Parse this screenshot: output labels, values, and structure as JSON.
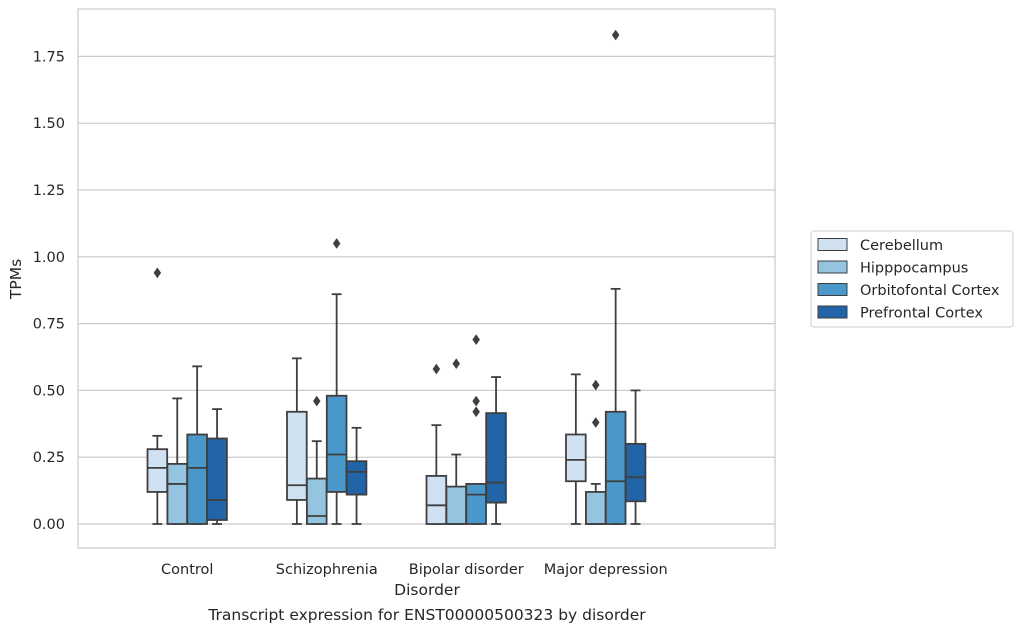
{
  "caption": "Transcript expression for ENST00000500323 by disorder",
  "chart_data": {
    "type": "boxplot",
    "xlabel": "Disorder",
    "ylabel": "TPMs",
    "ylim": [
      -0.09,
      1.92
    ],
    "yticks": [
      "0.00",
      "0.25",
      "0.50",
      "0.75",
      "1.00",
      "1.25",
      "1.50",
      "1.75"
    ],
    "grid": "horizontal",
    "legend_position": "right",
    "categories": [
      "Control",
      "Schizophrenia",
      "Bipolar disorder",
      "Major depression"
    ],
    "series": [
      {
        "name": "Cerebellum",
        "color": "#d0e1f2",
        "boxes": [
          {
            "whislo": 0.0,
            "q1": 0.12,
            "med": 0.21,
            "q3": 0.28,
            "whishi": 0.33,
            "fliers": [
              0.94
            ]
          },
          {
            "whislo": 0.0,
            "q1": 0.09,
            "med": 0.145,
            "q3": 0.42,
            "whishi": 0.62,
            "fliers": []
          },
          {
            "whislo": 0.0,
            "q1": 0.0,
            "med": 0.07,
            "q3": 0.18,
            "whishi": 0.37,
            "fliers": [
              0.58
            ]
          },
          {
            "whislo": 0.0,
            "q1": 0.16,
            "med": 0.24,
            "q3": 0.335,
            "whishi": 0.56,
            "fliers": []
          }
        ]
      },
      {
        "name": "Hipppocampus",
        "color": "#94c4df",
        "boxes": [
          {
            "whislo": 0.0,
            "q1": 0.0,
            "med": 0.15,
            "q3": 0.225,
            "whishi": 0.47,
            "fliers": []
          },
          {
            "whislo": 0.0,
            "q1": 0.0,
            "med": 0.03,
            "q3": 0.17,
            "whishi": 0.31,
            "fliers": [
              0.46
            ]
          },
          {
            "whislo": 0.0,
            "q1": 0.0,
            "med": 0.0,
            "q3": 0.14,
            "whishi": 0.26,
            "fliers": [
              0.6
            ]
          },
          {
            "whislo": 0.0,
            "q1": 0.0,
            "med": 0.0,
            "q3": 0.12,
            "whishi": 0.15,
            "fliers": [
              0.38,
              0.52
            ]
          }
        ]
      },
      {
        "name": "Orbitofontal Cortex",
        "color": "#4a98c9",
        "boxes": [
          {
            "whislo": 0.0,
            "q1": 0.0,
            "med": 0.21,
            "q3": 0.335,
            "whishi": 0.59,
            "fliers": []
          },
          {
            "whislo": 0.0,
            "q1": 0.12,
            "med": 0.26,
            "q3": 0.48,
            "whishi": 0.86,
            "fliers": [
              1.05
            ]
          },
          {
            "whislo": 0.0,
            "q1": 0.0,
            "med": 0.11,
            "q3": 0.15,
            "whishi": 0.15,
            "fliers": [
              0.42,
              0.46,
              0.69
            ]
          },
          {
            "whislo": 0.0,
            "q1": 0.0,
            "med": 0.16,
            "q3": 0.42,
            "whishi": 0.88,
            "fliers": [
              1.83
            ]
          }
        ]
      },
      {
        "name": "Prefrontal Cortex",
        "color": "#2264a8",
        "boxes": [
          {
            "whislo": 0.0,
            "q1": 0.015,
            "med": 0.09,
            "q3": 0.32,
            "whishi": 0.43,
            "fliers": []
          },
          {
            "whislo": 0.0,
            "q1": 0.11,
            "med": 0.195,
            "q3": 0.235,
            "whishi": 0.36,
            "fliers": []
          },
          {
            "whislo": 0.0,
            "q1": 0.08,
            "med": 0.155,
            "q3": 0.415,
            "whishi": 0.55,
            "fliers": []
          },
          {
            "whislo": 0.0,
            "q1": 0.085,
            "med": 0.175,
            "q3": 0.3,
            "whishi": 0.5,
            "fliers": []
          }
        ]
      }
    ]
  }
}
